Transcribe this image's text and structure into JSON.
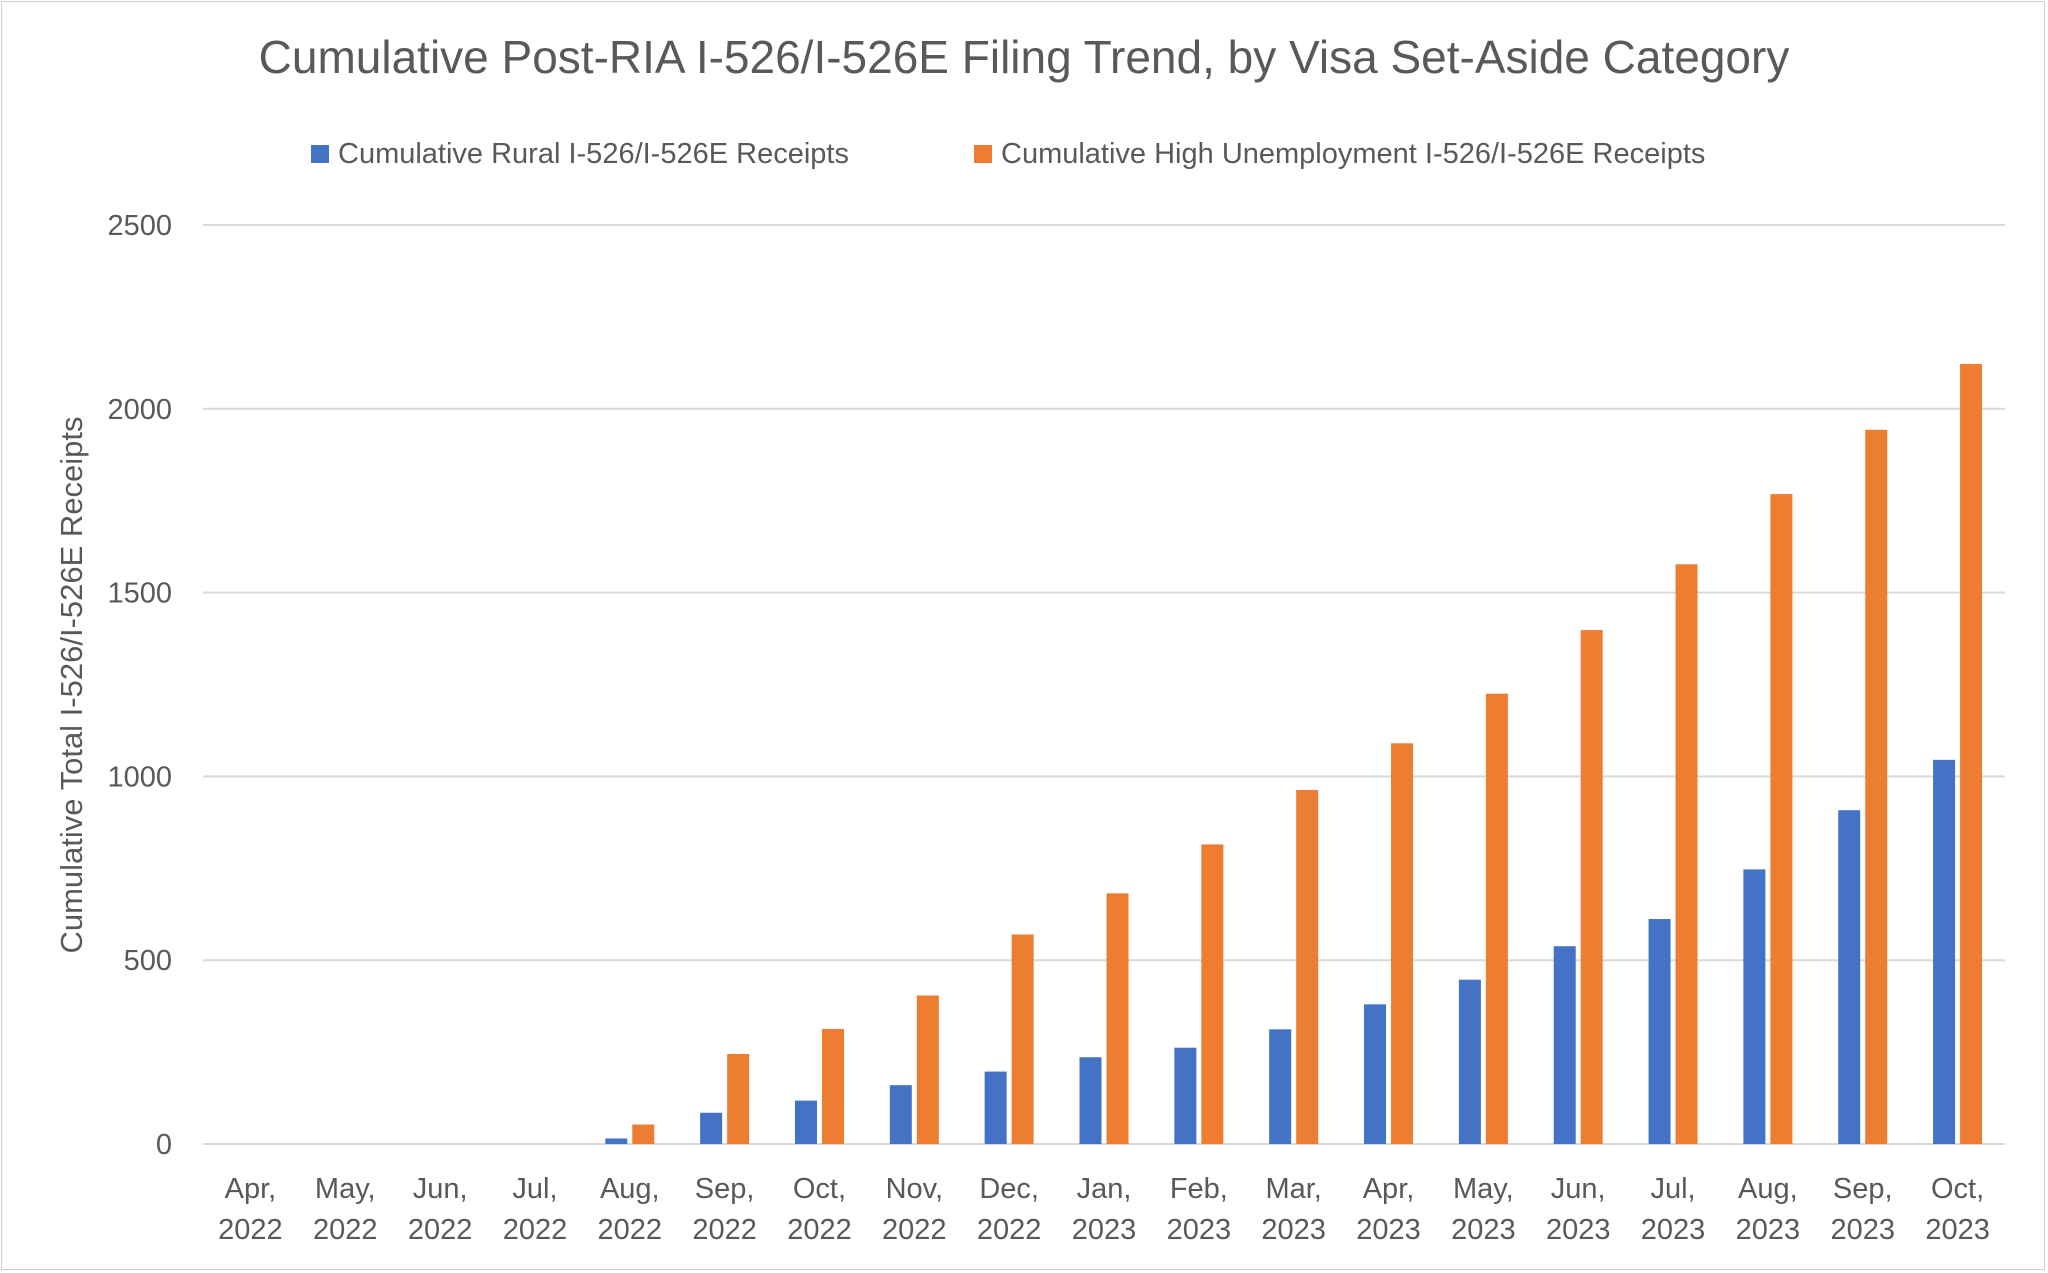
{
  "chart_data": {
    "type": "bar",
    "title": "Cumulative Post-RIA I-526/I-526E Filing Trend, by Visa Set-Aside Category",
    "ylabel": "Cumulative Total I-526/I-526E Receipts",
    "xlabel": "",
    "ylim": [
      0,
      2500
    ],
    "yticks": [
      0,
      500,
      1000,
      1500,
      2000,
      2500
    ],
    "grid": true,
    "legend_position": "top",
    "categories": [
      [
        "Apr,",
        "2022"
      ],
      [
        "May,",
        "2022"
      ],
      [
        "Jun,",
        "2022"
      ],
      [
        "Jul,",
        "2022"
      ],
      [
        "Aug,",
        "2022"
      ],
      [
        "Sep,",
        "2022"
      ],
      [
        "Oct,",
        "2022"
      ],
      [
        "Nov,",
        "2022"
      ],
      [
        "Dec,",
        "2022"
      ],
      [
        "Jan,",
        "2023"
      ],
      [
        "Feb,",
        "2023"
      ],
      [
        "Mar,",
        "2023"
      ],
      [
        "Apr,",
        "2023"
      ],
      [
        "May,",
        "2023"
      ],
      [
        "Jun,",
        "2023"
      ],
      [
        "Jul,",
        "2023"
      ],
      [
        "Aug,",
        "2023"
      ],
      [
        "Sep,",
        "2023"
      ],
      [
        "Oct,",
        "2023"
      ]
    ],
    "series": [
      {
        "name": "Cumulative Rural I-526/I-526E Receipts",
        "color": "#4472C4",
        "values": [
          0,
          0,
          0,
          0,
          15,
          85,
          118,
          160,
          197,
          236,
          262,
          312,
          380,
          447,
          538,
          612,
          747,
          908,
          1045
        ]
      },
      {
        "name": "Cumulative High Unemployment I-526/I-526E Receipts",
        "color": "#ED7D31",
        "values": [
          0,
          0,
          0,
          0,
          53,
          245,
          313,
          404,
          570,
          682,
          815,
          963,
          1090,
          1225,
          1398,
          1577,
          1768,
          1943,
          2122
        ]
      }
    ]
  },
  "colors": {
    "axis_text": "#595959",
    "gridline": "#d9d9d9"
  }
}
